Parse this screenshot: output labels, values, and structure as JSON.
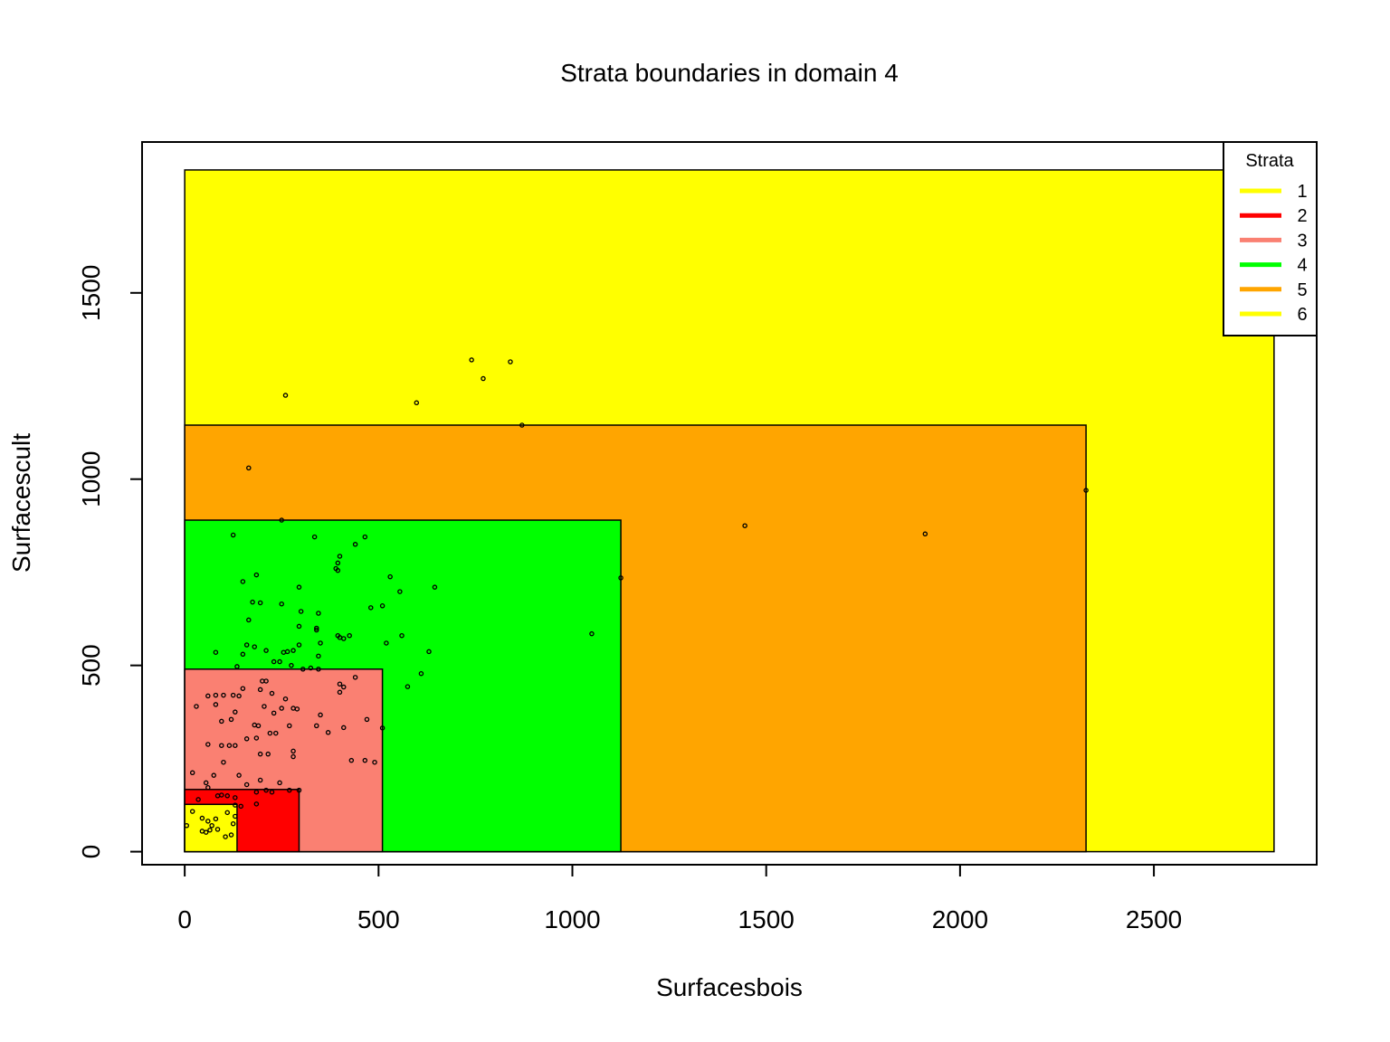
{
  "chart_data": {
    "type": "scatter",
    "title": "Strata boundaries in domain 4",
    "xlabel": "Surfacesbois",
    "ylabel": "Surfacescult",
    "xlim": [
      -110,
      2920
    ],
    "ylim": [
      -35,
      1905
    ],
    "x_ticks": [
      0,
      500,
      1000,
      1500,
      2000,
      2500
    ],
    "y_ticks": [
      0,
      500,
      1000,
      1500
    ],
    "grid": false,
    "legend": {
      "title": "Strata",
      "position": "top-right",
      "entries": [
        {
          "label": "1",
          "color": "#FFFF00"
        },
        {
          "label": "2",
          "color": "#FF0000"
        },
        {
          "label": "3",
          "color": "#FA8072"
        },
        {
          "label": "4",
          "color": "#00FF00"
        },
        {
          "label": "5",
          "color": "#FFA500"
        },
        {
          "label": "6",
          "color": "#FFFF00"
        }
      ]
    },
    "strata": [
      {
        "stratum": "6",
        "x_max": 2810,
        "y_max": 1830,
        "color": "#FFFF00"
      },
      {
        "stratum": "5",
        "x_max": 2325,
        "y_max": 1145,
        "color": "#FFA500"
      },
      {
        "stratum": "4",
        "x_max": 1125,
        "y_max": 890,
        "color": "#00FF00"
      },
      {
        "stratum": "3",
        "x_max": 510,
        "y_max": 490,
        "color": "#FA8072"
      },
      {
        "stratum": "2",
        "x_max": 295,
        "y_max": 167,
        "color": "#FF0000"
      },
      {
        "stratum": "1",
        "x_max": 135,
        "y_max": 127,
        "color": "#FFFF00"
      }
    ],
    "points": [
      [
        2810,
        1825
      ],
      [
        740,
        1320
      ],
      [
        840,
        1315
      ],
      [
        770,
        1270
      ],
      [
        598,
        1205
      ],
      [
        260,
        1225
      ],
      [
        870,
        1145
      ],
      [
        165,
        1030
      ],
      [
        2325,
        970
      ],
      [
        250,
        890
      ],
      [
        1445,
        875
      ],
      [
        1910,
        853
      ],
      [
        125,
        850
      ],
      [
        335,
        845
      ],
      [
        465,
        845
      ],
      [
        440,
        825
      ],
      [
        400,
        793
      ],
      [
        395,
        775
      ],
      [
        390,
        760
      ],
      [
        395,
        755
      ],
      [
        1125,
        735
      ],
      [
        530,
        738
      ],
      [
        185,
        743
      ],
      [
        150,
        725
      ],
      [
        555,
        698
      ],
      [
        645,
        710
      ],
      [
        295,
        710
      ],
      [
        175,
        670
      ],
      [
        195,
        668
      ],
      [
        250,
        665
      ],
      [
        510,
        660
      ],
      [
        345,
        640
      ],
      [
        300,
        645
      ],
      [
        480,
        655
      ],
      [
        165,
        622
      ],
      [
        295,
        605
      ],
      [
        340,
        600
      ],
      [
        340,
        595
      ],
      [
        1050,
        585
      ],
      [
        560,
        580
      ],
      [
        395,
        580
      ],
      [
        425,
        580
      ],
      [
        410,
        572
      ],
      [
        400,
        575
      ],
      [
        350,
        560
      ],
      [
        520,
        560
      ],
      [
        295,
        555
      ],
      [
        160,
        555
      ],
      [
        180,
        550
      ],
      [
        210,
        540
      ],
      [
        255,
        535
      ],
      [
        265,
        537
      ],
      [
        280,
        540
      ],
      [
        150,
        530
      ],
      [
        630,
        537
      ],
      [
        80,
        535
      ],
      [
        345,
        525
      ],
      [
        230,
        510
      ],
      [
        245,
        510
      ],
      [
        275,
        500
      ],
      [
        305,
        490
      ],
      [
        325,
        493
      ],
      [
        345,
        490
      ],
      [
        135,
        497
      ],
      [
        610,
        478
      ],
      [
        440,
        468
      ],
      [
        200,
        458
      ],
      [
        210,
        458
      ],
      [
        575,
        443
      ],
      [
        400,
        450
      ],
      [
        410,
        442
      ],
      [
        150,
        438
      ],
      [
        195,
        435
      ],
      [
        400,
        428
      ],
      [
        60,
        418
      ],
      [
        80,
        420
      ],
      [
        100,
        420
      ],
      [
        125,
        420
      ],
      [
        225,
        425
      ],
      [
        260,
        410
      ],
      [
        140,
        418
      ],
      [
        80,
        395
      ],
      [
        30,
        390
      ],
      [
        205,
        390
      ],
      [
        250,
        385
      ],
      [
        280,
        385
      ],
      [
        290,
        383
      ],
      [
        130,
        375
      ],
      [
        230,
        372
      ],
      [
        350,
        367
      ],
      [
        120,
        355
      ],
      [
        470,
        355
      ],
      [
        95,
        350
      ],
      [
        180,
        340
      ],
      [
        190,
        338
      ],
      [
        270,
        338
      ],
      [
        340,
        338
      ],
      [
        510,
        332
      ],
      [
        410,
        333
      ],
      [
        220,
        318
      ],
      [
        235,
        318
      ],
      [
        370,
        320
      ],
      [
        160,
        303
      ],
      [
        185,
        305
      ],
      [
        95,
        285
      ],
      [
        115,
        285
      ],
      [
        130,
        285
      ],
      [
        60,
        288
      ],
      [
        280,
        270
      ],
      [
        195,
        262
      ],
      [
        215,
        262
      ],
      [
        280,
        255
      ],
      [
        430,
        245
      ],
      [
        465,
        245
      ],
      [
        490,
        240
      ],
      [
        100,
        240
      ],
      [
        20,
        212
      ],
      [
        140,
        205
      ],
      [
        75,
        205
      ],
      [
        195,
        192
      ],
      [
        245,
        185
      ],
      [
        55,
        185
      ],
      [
        160,
        180
      ],
      [
        60,
        172
      ],
      [
        210,
        165
      ],
      [
        270,
        165
      ],
      [
        295,
        165
      ],
      [
        225,
        160
      ],
      [
        185,
        160
      ],
      [
        95,
        152
      ],
      [
        85,
        150
      ],
      [
        110,
        150
      ],
      [
        130,
        145
      ],
      [
        35,
        140
      ],
      [
        185,
        128
      ],
      [
        130,
        125
      ],
      [
        145,
        122
      ],
      [
        20,
        108
      ],
      [
        110,
        105
      ],
      [
        45,
        90
      ],
      [
        130,
        95
      ],
      [
        80,
        88
      ],
      [
        60,
        82
      ],
      [
        70,
        70
      ],
      [
        125,
        75
      ],
      [
        5,
        70
      ],
      [
        85,
        60
      ],
      [
        65,
        58
      ],
      [
        45,
        55
      ],
      [
        55,
        52
      ],
      [
        120,
        45
      ],
      [
        105,
        40
      ]
    ]
  }
}
